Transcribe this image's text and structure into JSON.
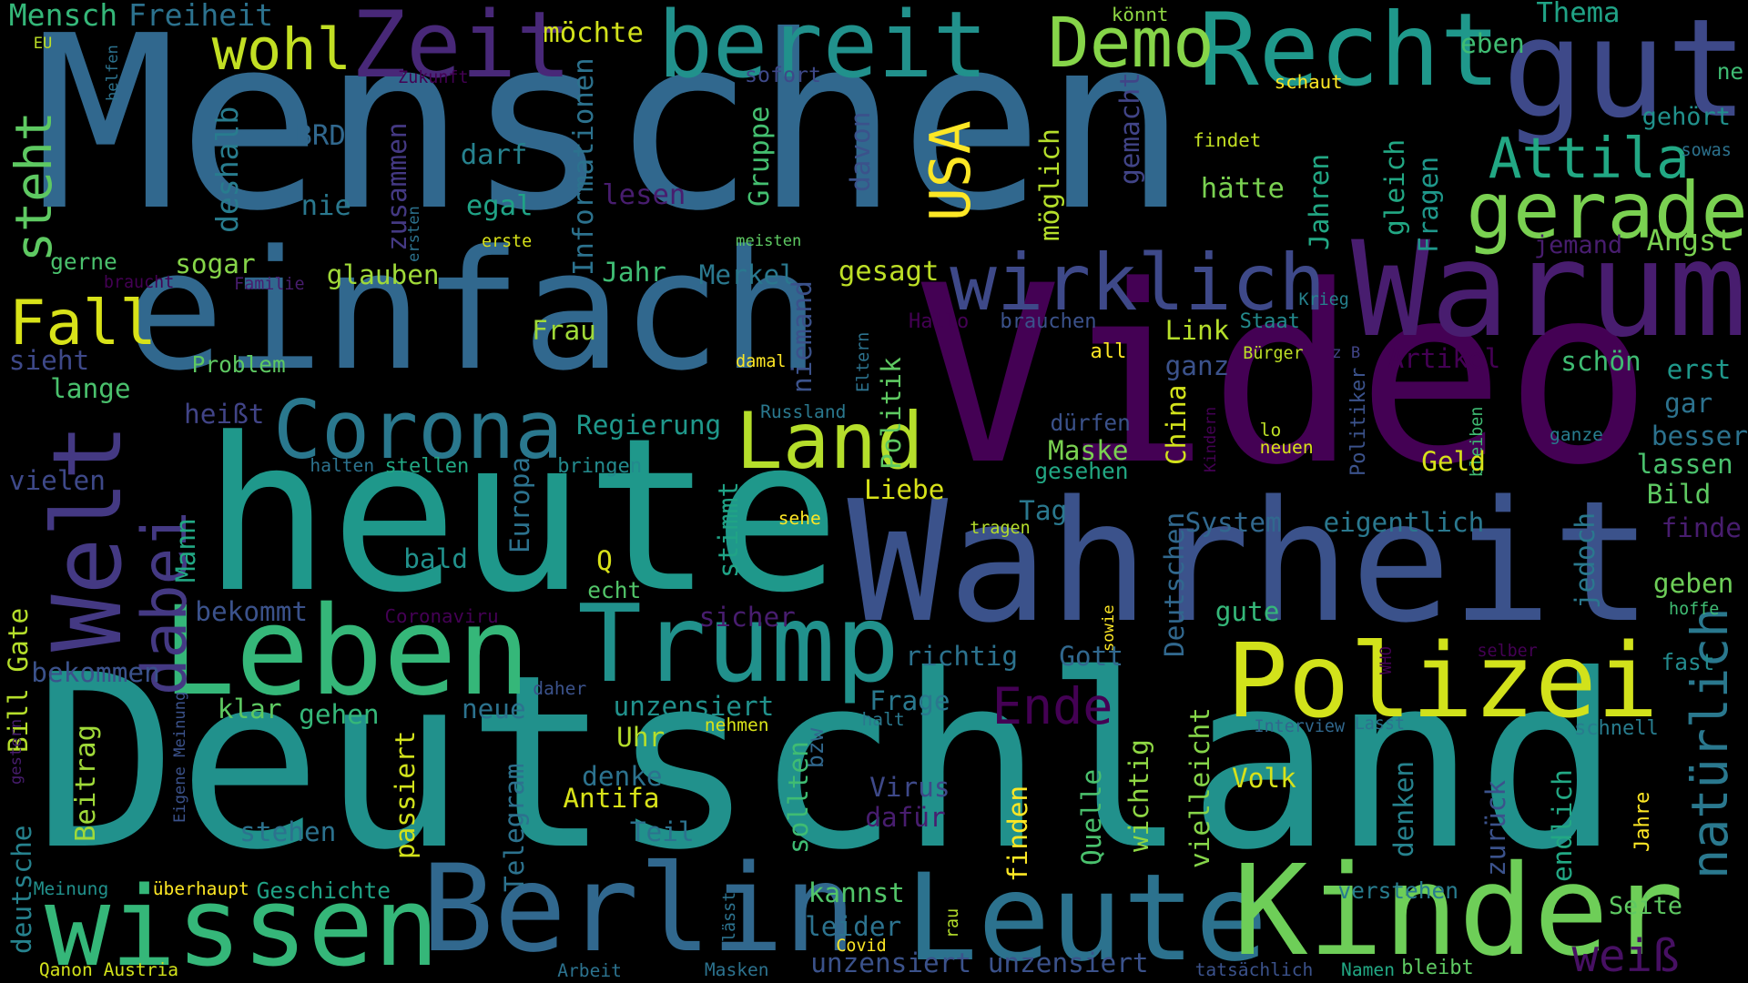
{
  "cloud": {
    "words": [
      {
        "text": "Menschen",
        "color": "#31688e"
      },
      {
        "text": "Deutschland",
        "color": "#21918c"
      },
      {
        "text": "Video",
        "color": "#440154"
      },
      {
        "text": "heute",
        "color": "#1f988b"
      },
      {
        "text": "Wahrheit",
        "color": "#3b528b"
      },
      {
        "text": "einfach",
        "color": "#31688e"
      },
      {
        "text": "Warum",
        "color": "#481d6f"
      },
      {
        "text": "Leben",
        "color": "#35b779"
      },
      {
        "text": "gut",
        "color": "#3e4989"
      },
      {
        "text": "Berlin",
        "color": "#31688e"
      },
      {
        "text": "Leute",
        "color": "#2c728e"
      },
      {
        "text": "Kinder",
        "color": "#6ece58"
      },
      {
        "text": "wissen",
        "color": "#35b779"
      },
      {
        "text": "Trump",
        "color": "#21918c"
      },
      {
        "text": "Polizei",
        "color": "#d2e21b"
      },
      {
        "text": "bereit",
        "color": "#21918c"
      },
      {
        "text": "Recht",
        "color": "#1f988b"
      },
      {
        "text": "Zeit",
        "color": "#482878"
      },
      {
        "text": "Corona",
        "color": "#2a788e"
      },
      {
        "text": "Welt",
        "color": "#443983"
      },
      {
        "text": "Land",
        "color": "#b5de2b"
      },
      {
        "text": "wirklich",
        "color": "#3e4989"
      },
      {
        "text": "gerade",
        "color": "#7ad151"
      },
      {
        "text": "Demo",
        "color": "#86d549"
      },
      {
        "text": "Attila",
        "color": "#22a884"
      },
      {
        "text": "wohl",
        "color": "#c2df23"
      },
      {
        "text": "natürlich",
        "color": "#2a788e"
      },
      {
        "text": "dabei",
        "color": "#443983"
      },
      {
        "text": "Fall",
        "color": "#d8e219"
      },
      {
        "text": "USA",
        "color": "#fde725"
      },
      {
        "text": "steht",
        "color": "#5ec962"
      },
      {
        "text": "Ende",
        "color": "#440154"
      },
      {
        "text": "weiß",
        "color": "#471063"
      },
      {
        "text": "Mensch",
        "color": "#35b779"
      },
      {
        "text": "Freiheit",
        "color": "#2c728e"
      },
      {
        "text": "möchte",
        "color": "#d2e21b"
      },
      {
        "text": "Thema",
        "color": "#20a386"
      },
      {
        "text": "eben",
        "color": "#3fbc73"
      },
      {
        "text": "könnt",
        "color": "#8fd744"
      },
      {
        "text": "EU",
        "color": "#bddf26"
      },
      {
        "text": "helfen",
        "color": "#2c728e"
      },
      {
        "text": "Zukunft",
        "color": "#440154"
      },
      {
        "text": "sofort",
        "color": "#3e4989"
      },
      {
        "text": "schaut",
        "color": "#fde725"
      },
      {
        "text": "ne",
        "color": "#3fbc73"
      },
      {
        "text": "gehört",
        "color": "#21918c"
      },
      {
        "text": "sowas",
        "color": "#2c728e"
      },
      {
        "text": "findet",
        "color": "#c2df23"
      },
      {
        "text": "BRD",
        "color": "#31688e"
      },
      {
        "text": "deshalb",
        "color": "#287c8e"
      },
      {
        "text": "zusammen",
        "color": "#443983"
      },
      {
        "text": "darf",
        "color": "#26828e"
      },
      {
        "text": "nie",
        "color": "#2a788e"
      },
      {
        "text": "egal",
        "color": "#20a386"
      },
      {
        "text": "lesen",
        "color": "#481d6f"
      },
      {
        "text": "Informationen",
        "color": "#2c728e"
      },
      {
        "text": "Gruppe",
        "color": "#44bf70"
      },
      {
        "text": "davon",
        "color": "#3b528b"
      },
      {
        "text": "möglich",
        "color": "#b5de2b"
      },
      {
        "text": "gemacht",
        "color": "#414487"
      },
      {
        "text": "hätte",
        "color": "#7ad151"
      },
      {
        "text": "Jahren",
        "color": "#22a884"
      },
      {
        "text": "gleich",
        "color": "#22a884"
      },
      {
        "text": "Fragen",
        "color": "#1f988b"
      },
      {
        "text": "Angst",
        "color": "#7ad151"
      },
      {
        "text": "jemand",
        "color": "#481d6f"
      },
      {
        "text": "ersten",
        "color": "#2c728e"
      },
      {
        "text": "erste",
        "color": "#d8e219"
      },
      {
        "text": "meisten",
        "color": "#5ec962"
      },
      {
        "text": "gerne",
        "color": "#4ac16d"
      },
      {
        "text": "sogar",
        "color": "#86d549"
      },
      {
        "text": "glauben",
        "color": "#a0da39"
      },
      {
        "text": "Jahr",
        "color": "#3fbc73"
      },
      {
        "text": "Merkel",
        "color": "#2a788e"
      },
      {
        "text": "gesagt",
        "color": "#bddf26"
      },
      {
        "text": "braucht",
        "color": "#440154"
      },
      {
        "text": "Familie",
        "color": "#481d6f"
      },
      {
        "text": "niemand",
        "color": "#3b528b"
      },
      {
        "text": "Krieg",
        "color": "#26828e"
      },
      {
        "text": "sieht",
        "color": "#3e4989"
      },
      {
        "text": "Problem",
        "color": "#5ec962"
      },
      {
        "text": "lange",
        "color": "#4ac16d"
      },
      {
        "text": "Frau",
        "color": "#a0da39"
      },
      {
        "text": "Hallo",
        "color": "#440154"
      },
      {
        "text": "brauchen",
        "color": "#3b528b"
      },
      {
        "text": "Link",
        "color": "#b5de2b"
      },
      {
        "text": "Staat",
        "color": "#238a8d"
      },
      {
        "text": "damal",
        "color": "#fde725"
      },
      {
        "text": "Eltern",
        "color": "#2c728e"
      },
      {
        "text": "all",
        "color": "#fde725"
      },
      {
        "text": "z B",
        "color": "#414487"
      },
      {
        "text": "Bürger",
        "color": "#bddf26"
      },
      {
        "text": "ganz",
        "color": "#3b528b"
      },
      {
        "text": "Artikel",
        "color": "#440154"
      },
      {
        "text": "schön",
        "color": "#3fbc73"
      },
      {
        "text": "erst",
        "color": "#1f988b"
      },
      {
        "text": "gar",
        "color": "#2c728e"
      },
      {
        "text": "heißt",
        "color": "#414487"
      },
      {
        "text": "Regierung",
        "color": "#1f988b"
      },
      {
        "text": "Politik",
        "color": "#5ec962"
      },
      {
        "text": "Russland",
        "color": "#2a788e"
      },
      {
        "text": "dürfen",
        "color": "#3b528b"
      },
      {
        "text": "China",
        "color": "#d2e21b"
      },
      {
        "text": "Kindern",
        "color": "#440154"
      },
      {
        "text": "lo",
        "color": "#bddf26"
      },
      {
        "text": "neuen",
        "color": "#d8e219"
      },
      {
        "text": "ganze",
        "color": "#287c8e"
      },
      {
        "text": "Politiker",
        "color": "#3b528b"
      },
      {
        "text": "bleiben",
        "color": "#3fbc73"
      },
      {
        "text": "besser",
        "color": "#2c728e"
      },
      {
        "text": "lassen",
        "color": "#4ac16d"
      },
      {
        "text": "Bild",
        "color": "#5ec962"
      },
      {
        "text": "vielen",
        "color": "#3e4989"
      },
      {
        "text": "halten",
        "color": "#2c728e"
      },
      {
        "text": "stellen",
        "color": "#22a884"
      },
      {
        "text": "bringen",
        "color": "#238a8d"
      },
      {
        "text": "Europa",
        "color": "#2c728e"
      },
      {
        "text": "Maske",
        "color": "#7ad151"
      },
      {
        "text": "gesehen",
        "color": "#22a884"
      },
      {
        "text": "Geld",
        "color": "#d8e219"
      },
      {
        "text": "Liebe",
        "color": "#d8e219"
      },
      {
        "text": "Tag",
        "color": "#2a788e"
      },
      {
        "text": "finde",
        "color": "#481d6f"
      },
      {
        "text": "System",
        "color": "#31688e"
      },
      {
        "text": "eigentlich",
        "color": "#2a788e"
      },
      {
        "text": "Mann",
        "color": "#22a884"
      },
      {
        "text": "stimmt",
        "color": "#20a386"
      },
      {
        "text": "sehe",
        "color": "#fde725"
      },
      {
        "text": "tragen",
        "color": "#b5de2b"
      },
      {
        "text": "Q",
        "color": "#d8e219"
      },
      {
        "text": "echt",
        "color": "#52c569"
      },
      {
        "text": "bald",
        "color": "#21918c"
      },
      {
        "text": "Bill Gate",
        "color": "#b5de2b"
      },
      {
        "text": "jedoch",
        "color": "#2a788e"
      },
      {
        "text": "geben",
        "color": "#6ece58"
      },
      {
        "text": "hoffe",
        "color": "#3fbc73"
      },
      {
        "text": "bekommt",
        "color": "#3b528b"
      },
      {
        "text": "Coronaviru",
        "color": "#440154"
      },
      {
        "text": "gute",
        "color": "#35b779"
      },
      {
        "text": "sicher",
        "color": "#481d6f"
      },
      {
        "text": "sowie",
        "color": "#fde725"
      },
      {
        "text": "richtig",
        "color": "#2c728e"
      },
      {
        "text": "Gott",
        "color": "#31688e"
      },
      {
        "text": "Deutschen",
        "color": "#31688e"
      },
      {
        "text": "selber",
        "color": "#440154"
      },
      {
        "text": "WHO",
        "color": "#440154"
      },
      {
        "text": "fast",
        "color": "#238a8d"
      },
      {
        "text": "bekommen",
        "color": "#3b528b"
      },
      {
        "text": "daher",
        "color": "#3b528b"
      },
      {
        "text": "klar",
        "color": "#5ec962"
      },
      {
        "text": "gehen",
        "color": "#35b779"
      },
      {
        "text": "neue",
        "color": "#2c728e"
      },
      {
        "text": "unzensiert",
        "color": "#21918c"
      },
      {
        "text": "Frage",
        "color": "#2a788e"
      },
      {
        "text": "nehmen",
        "color": "#d8e219"
      },
      {
        "text": "halt",
        "color": "#2a788e"
      },
      {
        "text": "Interview",
        "color": "#31688e"
      },
      {
        "text": "Lasst",
        "color": "#2c728e"
      },
      {
        "text": "schnell",
        "color": "#287c8e"
      },
      {
        "text": "gestern",
        "color": "#481d6f"
      },
      {
        "text": "Eigene Meinung",
        "color": "#3b528b"
      },
      {
        "text": "Beitrag",
        "color": "#a0da39"
      },
      {
        "text": "passiert",
        "color": "#d2e21b"
      },
      {
        "text": "Telegram",
        "color": "#2c728e"
      },
      {
        "text": "Uhr",
        "color": "#b5de2b"
      },
      {
        "text": "bzw",
        "color": "#31688e"
      },
      {
        "text": "denke",
        "color": "#2c728e"
      },
      {
        "text": "Antifa",
        "color": "#d8e219"
      },
      {
        "text": "sollten",
        "color": "#3fbc73"
      },
      {
        "text": "Virus",
        "color": "#3e4989"
      },
      {
        "text": "dafür",
        "color": "#481d6f"
      },
      {
        "text": "Teil",
        "color": "#2c728e"
      },
      {
        "text": "Quelle",
        "color": "#4ac16d"
      },
      {
        "text": "finden",
        "color": "#fde725"
      },
      {
        "text": "wichtig",
        "color": "#8fd744"
      },
      {
        "text": "Volk",
        "color": "#d8e219"
      },
      {
        "text": "vielleicht",
        "color": "#86d549"
      },
      {
        "text": "denken",
        "color": "#26828e"
      },
      {
        "text": "zurück",
        "color": "#3b528b"
      },
      {
        "text": "endlich",
        "color": "#22a884"
      },
      {
        "text": "Jahre",
        "color": "#fde725"
      },
      {
        "text": "stehen",
        "color": "#2c728e"
      },
      {
        "text": "deutsche",
        "color": "#26828e"
      },
      {
        "text": "Meinung",
        "color": "#21918c"
      },
      {
        "text": "überhaupt",
        "color": "#fde725"
      },
      {
        "text": "Geschichte",
        "color": "#20a386"
      },
      {
        "text": "kannst",
        "color": "#52c569"
      },
      {
        "text": "leider",
        "color": "#2c728e"
      },
      {
        "text": "Covid",
        "color": "#fde725"
      },
      {
        "text": "lässt",
        "color": "#2c728e"
      },
      {
        "text": "rau",
        "color": "#b5de2b"
      },
      {
        "text": "verstehen",
        "color": "#287c8e"
      },
      {
        "text": "Seite",
        "color": "#5ec962"
      },
      {
        "text": "unzensiert unzensiert",
        "color": "#3b528b"
      },
      {
        "text": "tatsächlich",
        "color": "#3b528b"
      },
      {
        "text": "Namen",
        "color": "#22a884"
      },
      {
        "text": "bleibt",
        "color": "#5ec962"
      },
      {
        "text": "Qanon Austria",
        "color": "#d2e21b"
      },
      {
        "text": "Arbeit",
        "color": "#2c728e"
      },
      {
        "text": "Masken",
        "color": "#2c728e"
      }
    ]
  }
}
